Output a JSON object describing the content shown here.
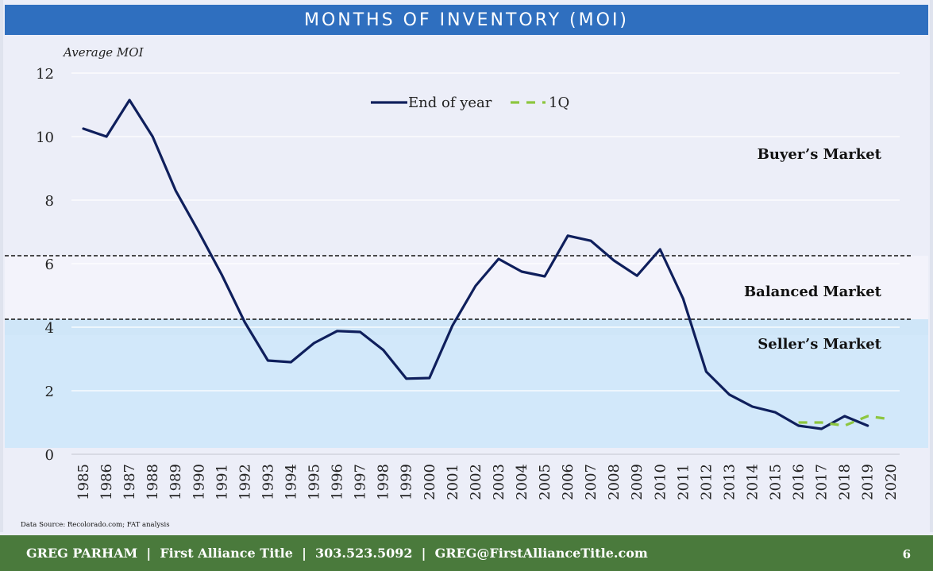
{
  "title": "MONTHS OF INVENTORY (MOI)",
  "ylabel": "Average MOI",
  "source": "Data Source: Recolorado.com; FAT analysis",
  "footer": {
    "contact": "GREG PARHAM  |  First Alliance Title  |  303.523.5092  |  GREG@FirstAllianceTitle.com",
    "page": "6"
  },
  "colors": {
    "title_bar": "#2f6fbf",
    "footer": "#4a7a3c",
    "end_of_year_line": "#0f1f5c",
    "q1_line": "#8dc63f",
    "sellers_zone": "#cfe6f8",
    "balanced_zone": "#f3f3fb",
    "buyers_zone": "#eceef8"
  },
  "chart_data": {
    "type": "line",
    "x": [
      "1985",
      "1986",
      "1987",
      "1988",
      "1989",
      "1990",
      "1991",
      "1992",
      "1993",
      "1994",
      "1995",
      "1996",
      "1997",
      "1998",
      "1999",
      "2000",
      "2001",
      "2002",
      "2003",
      "2004",
      "2005",
      "2006",
      "2007",
      "2008",
      "2009",
      "2010",
      "2011",
      "2012",
      "2013",
      "2014",
      "2015",
      "2016",
      "2017",
      "2018",
      "2019",
      "2020"
    ],
    "yticks": [
      0,
      2,
      4,
      6,
      8,
      10,
      12
    ],
    "ylim": [
      0,
      12
    ],
    "grid": true,
    "legend_position": "top",
    "series": [
      {
        "name": "End of year",
        "style": "solid",
        "values": [
          10.25,
          10.0,
          11.15,
          10.0,
          8.3,
          7.0,
          5.65,
          4.15,
          2.95,
          2.9,
          3.5,
          3.88,
          3.85,
          3.28,
          2.38,
          2.4,
          4.05,
          5.3,
          6.15,
          5.75,
          5.6,
          6.88,
          6.72,
          6.1,
          5.62,
          6.45,
          4.9,
          2.6,
          1.88,
          1.5,
          1.32,
          0.9,
          0.8,
          1.2,
          0.9,
          null
        ]
      },
      {
        "name": "1Q",
        "style": "dashed",
        "values": [
          null,
          null,
          null,
          null,
          null,
          null,
          null,
          null,
          null,
          null,
          null,
          null,
          null,
          null,
          null,
          null,
          null,
          null,
          null,
          null,
          null,
          null,
          null,
          null,
          null,
          null,
          null,
          null,
          null,
          null,
          null,
          1.0,
          1.0,
          0.9,
          1.2,
          1.1
        ]
      }
    ],
    "zones": [
      {
        "label": "Buyer’s Market",
        "from": 6.25,
        "to": 12
      },
      {
        "label": "Balanced Market",
        "from": 4.25,
        "to": 6.25
      },
      {
        "label": "Seller’s Market",
        "from": 0,
        "to": 4.25
      }
    ],
    "thresholds": [
      6.25,
      4.25
    ]
  }
}
